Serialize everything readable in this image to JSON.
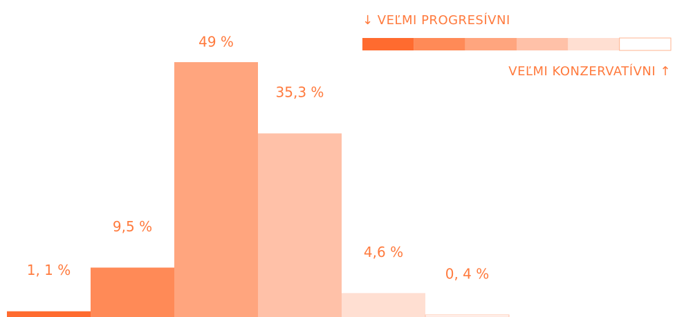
{
  "chart_data": {
    "type": "bar",
    "categories": [
      null,
      null,
      null,
      null,
      null,
      null
    ],
    "values": [
      1.1,
      9.5,
      49,
      35.3,
      4.6,
      0.4
    ],
    "value_labels": [
      "1, 1 %",
      "9,5 %",
      "49 %",
      "35,3 %",
      "4,6 %",
      "0, 4 %"
    ],
    "colors": [
      "#ff6b2f",
      "#ff8a57",
      "#ffa57e",
      "#ffc1a8",
      "#ffdfd2",
      "#ffffff"
    ],
    "legend": {
      "top": "↓ VEĽMI PROGRESÍVNI",
      "bottom": "VEĽMI KONZERVATÍVNI ↑",
      "position": "upper right"
    }
  }
}
